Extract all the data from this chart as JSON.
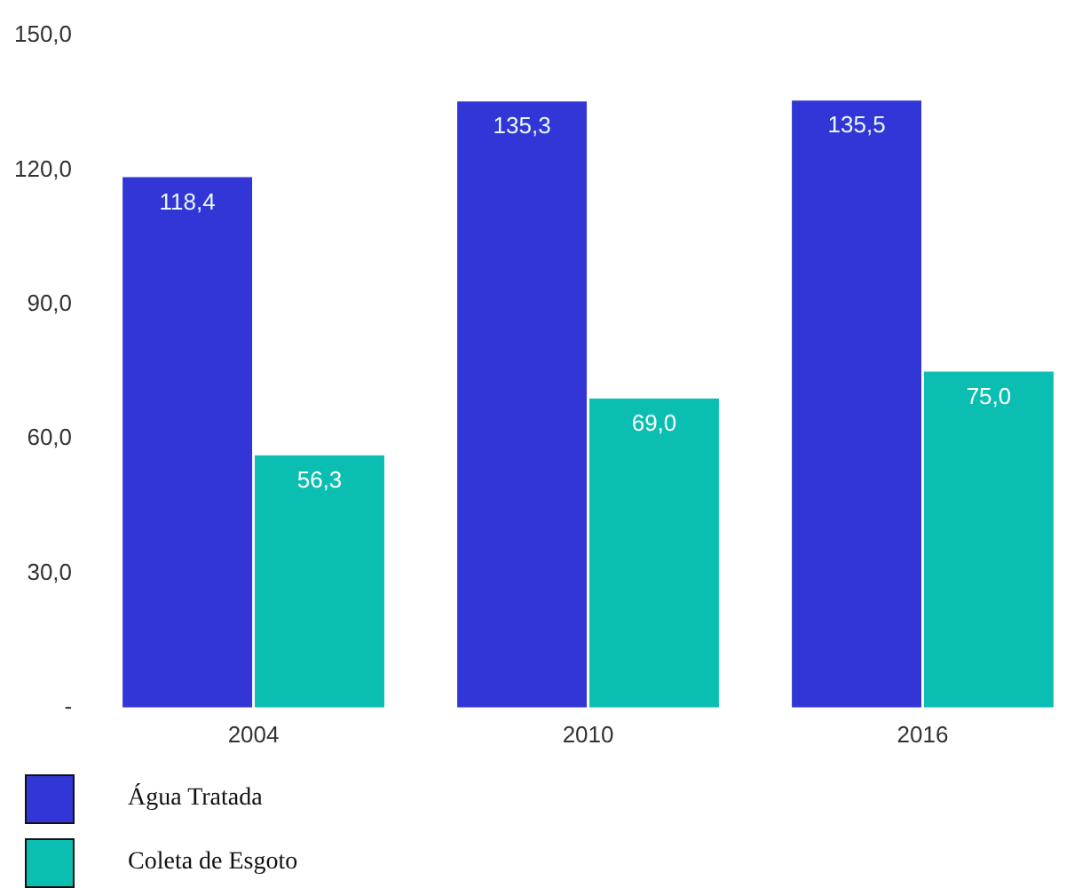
{
  "chart_data": {
    "type": "bar",
    "categories": [
      "2004",
      "2010",
      "2016"
    ],
    "series": [
      {
        "name": "Água Tratada",
        "color": "#3236d6",
        "values": [
          118.4,
          135.3,
          135.5
        ],
        "value_labels": [
          "118,4",
          "135,3",
          "135,5"
        ]
      },
      {
        "name": "Coleta de Esgoto",
        "color": "#0abfb2",
        "values": [
          56.3,
          69.0,
          75.0
        ],
        "value_labels": [
          "56,3",
          "69,0",
          "75,0"
        ]
      }
    ],
    "ylim": [
      0,
      150
    ],
    "yticks": [
      {
        "value": 0,
        "label": "-"
      },
      {
        "value": 30,
        "label": "30,0"
      },
      {
        "value": 60,
        "label": "60,0"
      },
      {
        "value": 90,
        "label": "90,0"
      },
      {
        "value": 120,
        "label": "120,0"
      },
      {
        "value": 150,
        "label": "150,0"
      }
    ],
    "grid": false,
    "legend": "bottom left"
  }
}
